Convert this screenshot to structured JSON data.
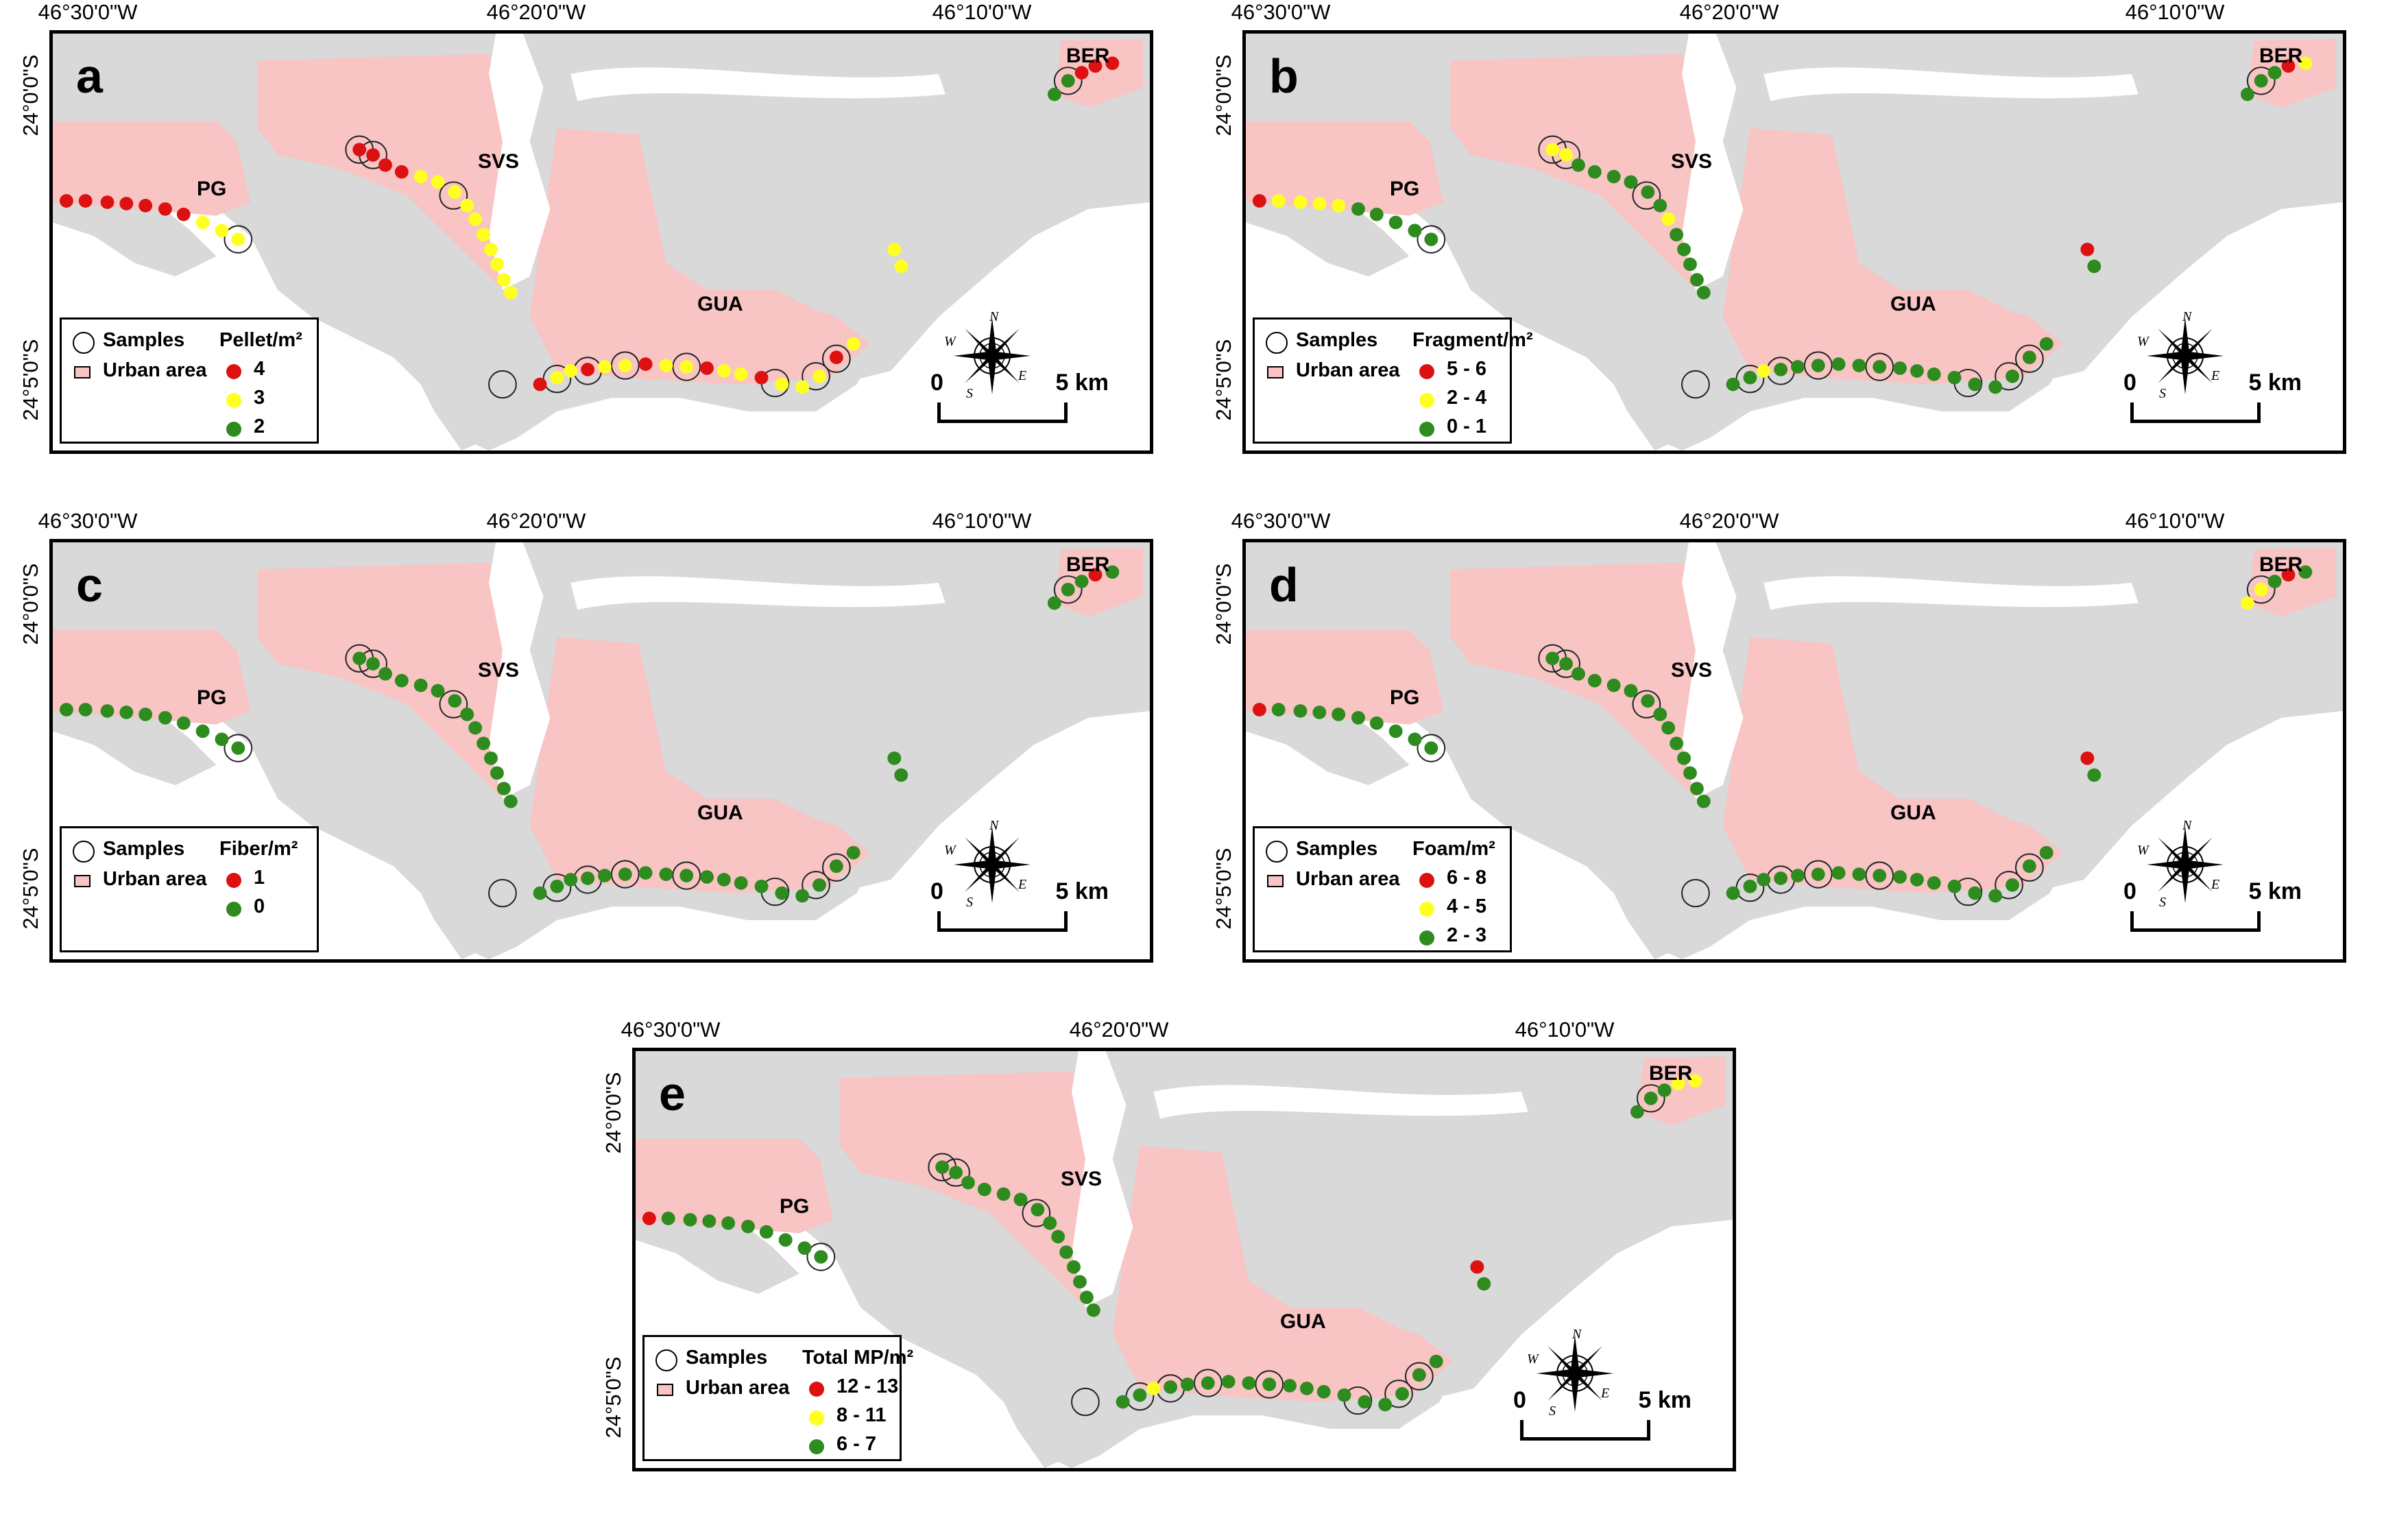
{
  "figure": {
    "place_names": [
      "PG",
      "SVS",
      "GUA",
      "BER"
    ],
    "samples_label": "Samples",
    "urban_label": "Urban area",
    "scale": {
      "start": "0",
      "end": "5 km"
    },
    "compass": {
      "n": "N",
      "s": "S",
      "e": "E",
      "w": "W"
    },
    "colors": {
      "land": "#d9d9d9",
      "urban": "#f8c4c4",
      "high": "#dd1111",
      "mid": "#ffff22",
      "low": "#2e8b1e",
      "frame": "#000000"
    }
  },
  "panels": [
    {
      "letter": "a",
      "x_ticks": [
        "46°30'0\"W",
        "46°20'0\"W",
        "46°10'0\"W"
      ],
      "y_ticks": [
        "24°0'0\"S",
        "24°5'0\"S"
      ],
      "legend_title": "Pellet/m²",
      "classes": [
        {
          "label": "4",
          "color": "#dd1111"
        },
        {
          "label": "3",
          "color": "#ffff22"
        },
        {
          "label": "2",
          "color": "#2e8b1e"
        }
      ]
    },
    {
      "letter": "b",
      "x_ticks": [
        "46°30'0\"W",
        "46°20'0\"W",
        "46°10'0\"W"
      ],
      "y_ticks": [
        "24°0'0\"S",
        "24°5'0\"S"
      ],
      "legend_title": "Fragment/m²",
      "classes": [
        {
          "label": "5 - 6",
          "color": "#dd1111"
        },
        {
          "label": "2 - 4",
          "color": "#ffff22"
        },
        {
          "label": "0 - 1",
          "color": "#2e8b1e"
        }
      ]
    },
    {
      "letter": "c",
      "x_ticks": [
        "46°30'0\"W",
        "46°20'0\"W",
        "46°10'0\"W"
      ],
      "y_ticks": [
        "24°0'0\"S",
        "24°5'0\"S"
      ],
      "legend_title": "Fiber/m²",
      "classes": [
        {
          "label": "1",
          "color": "#dd1111"
        },
        {
          "label": "0",
          "color": "#2e8b1e"
        }
      ]
    },
    {
      "letter": "d",
      "x_ticks": [
        "46°30'0\"W",
        "46°20'0\"W",
        "46°10'0\"W"
      ],
      "y_ticks": [
        "24°0'0\"S",
        "24°5'0\"S"
      ],
      "legend_title": "Foam/m²",
      "classes": [
        {
          "label": "6 - 8",
          "color": "#dd1111"
        },
        {
          "label": "4 - 5",
          "color": "#ffff22"
        },
        {
          "label": "2 - 3",
          "color": "#2e8b1e"
        }
      ]
    },
    {
      "letter": "e",
      "x_ticks": [
        "46°30'0\"W",
        "46°20'0\"W",
        "46°10'0\"W"
      ],
      "y_ticks": [
        "24°0'0\"S",
        "24°5'0\"S"
      ],
      "legend_title": "Total MP/m²",
      "classes": [
        {
          "label": "12 - 13",
          "color": "#dd1111"
        },
        {
          "label": "8 - 11",
          "color": "#ffff22"
        },
        {
          "label": "6 - 7",
          "color": "#2e8b1e"
        }
      ]
    }
  ]
}
